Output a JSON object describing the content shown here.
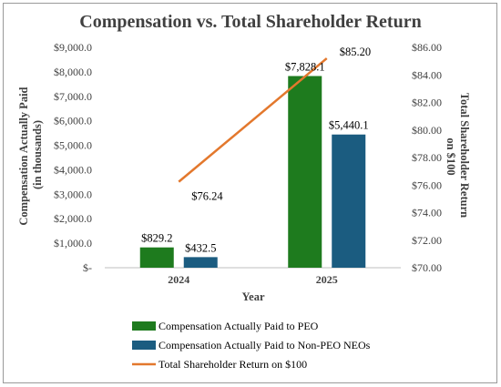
{
  "chart_data": {
    "type": "bar",
    "title": "Compensation vs. Total Shareholder Return",
    "xlabel": "Year",
    "ylabel": "Compensation Actually Paid (in thousands)",
    "y2label": "Total Shareholder Return on $100",
    "categories": [
      "2024",
      "2025"
    ],
    "ylim": [
      0,
      9000
    ],
    "y2lim": [
      70,
      86
    ],
    "y_ticks": [
      "$-",
      "$1,000.0",
      "$2,000.0",
      "$3,000.0",
      "$4,000.0",
      "$5,000.0",
      "$6,000.0",
      "$7,000.0",
      "$8,000.0",
      "$9,000.0"
    ],
    "y2_ticks": [
      "$70.00",
      "$72.00",
      "$74.00",
      "$76.00",
      "$78.00",
      "$80.00",
      "$82.00",
      "$84.00",
      "$86.00"
    ],
    "series": [
      {
        "name": "Compensation Actually Paid to PEO",
        "type": "bar",
        "axis": "left",
        "color": "#1e7b1e",
        "values": [
          829.2,
          7828.1
        ],
        "labels": [
          "$829.2",
          "$7,828.1"
        ]
      },
      {
        "name": "Compensation Actually Paid to Non-PEO NEOs",
        "type": "bar",
        "axis": "left",
        "color": "#1b5c80",
        "values": [
          432.5,
          5440.1
        ],
        "labels": [
          "$432.5",
          "$5,440.1"
        ]
      },
      {
        "name": "Total Shareholder Return on $100",
        "type": "line",
        "axis": "right",
        "color": "#e3782d",
        "values": [
          76.24,
          85.2
        ],
        "labels": [
          "$76.24",
          "$85.20"
        ]
      }
    ],
    "grid": false,
    "legend_position": "bottom-left"
  }
}
